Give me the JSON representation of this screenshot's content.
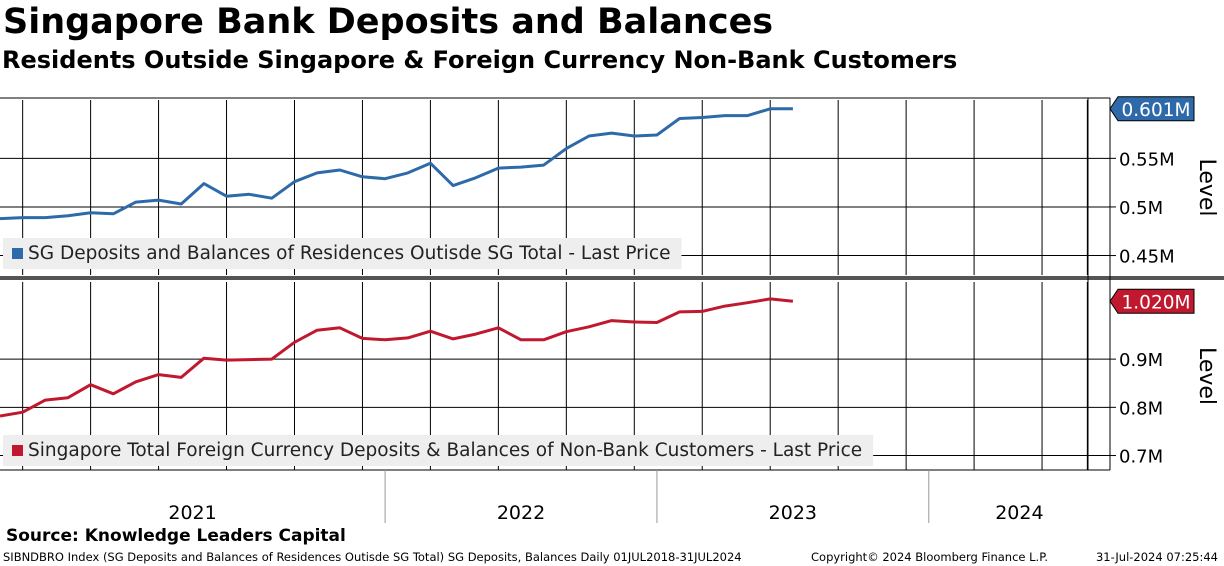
{
  "header": {
    "title": "Singapore Bank Deposits and Balances",
    "subtitle": "Residents Outside Singapore & Foreign Currency Non-Bank Customers"
  },
  "colors": {
    "blue": "#2e6aa9",
    "red": "#c0192f"
  },
  "x_axis": {
    "years": [
      "2021",
      "2022",
      "2023",
      "2024"
    ],
    "start": "2020-08-01",
    "end": "2024-09-01",
    "gridlines": [
      "2020-09-01",
      "2020-12-01",
      "2021-03-01",
      "2021-06-01",
      "2021-09-01",
      "2021-12-01",
      "2022-03-01",
      "2022-06-01",
      "2022-09-01",
      "2022-12-01",
      "2023-03-01",
      "2023-06-01",
      "2023-09-01",
      "2023-12-01",
      "2024-03-01",
      "2024-06-01",
      "2024-08-01"
    ],
    "year_separators": [
      "2022-01-01",
      "2023-01-01",
      "2024-01-01"
    ]
  },
  "chart_data": [
    {
      "type": "line",
      "series_name": "SG Deposits and Balances of Residences Outisde SG Total - Last Price",
      "axis_label": "Level",
      "last_value_label": "0.601M",
      "ylim": [
        0.43,
        0.61
      ],
      "ticks": [
        0.45,
        0.5,
        0.55
      ],
      "tick_labels": [
        "0.45M",
        "0.5M",
        "0.55M"
      ],
      "x": [
        "2020-08",
        "2020-09",
        "2020-10",
        "2020-11",
        "2020-12",
        "2021-01",
        "2021-02",
        "2021-03",
        "2021-04",
        "2021-05",
        "2021-06",
        "2021-07",
        "2021-08",
        "2021-09",
        "2021-10",
        "2021-11",
        "2021-12",
        "2022-01",
        "2022-02",
        "2022-03",
        "2022-04",
        "2022-05",
        "2022-06",
        "2022-07",
        "2022-08",
        "2022-09",
        "2022-10",
        "2022-11",
        "2022-12",
        "2023-01",
        "2023-02",
        "2023-03",
        "2023-04",
        "2023-05",
        "2023-06",
        "2023-07"
      ],
      "values": [
        0.488,
        0.489,
        0.489,
        0.491,
        0.494,
        0.493,
        0.505,
        0.507,
        0.503,
        0.524,
        0.511,
        0.513,
        0.509,
        0.526,
        0.535,
        0.538,
        0.531,
        0.529,
        0.535,
        0.545,
        0.522,
        0.53,
        0.54,
        0.541,
        0.543,
        0.56,
        0.573,
        0.576,
        0.573,
        0.574,
        0.591,
        0.592,
        0.594,
        0.594,
        0.601,
        0.601
      ]
    },
    {
      "type": "line",
      "series_name": "Singapore Total Foreign Currency Deposits & Balances of Non-Bank Customers - Last Price",
      "axis_label": "Level",
      "last_value_label": "1.020M",
      "ylim": [
        0.67,
        1.06
      ],
      "ticks": [
        0.7,
        0.8,
        0.9
      ],
      "tick_labels": [
        "0.7M",
        "0.8M",
        "0.9M"
      ],
      "x": [
        "2020-08",
        "2020-09",
        "2020-10",
        "2020-11",
        "2020-12",
        "2021-01",
        "2021-02",
        "2021-03",
        "2021-04",
        "2021-05",
        "2021-06",
        "2021-07",
        "2021-08",
        "2021-09",
        "2021-10",
        "2021-11",
        "2021-12",
        "2022-01",
        "2022-02",
        "2022-03",
        "2022-04",
        "2022-05",
        "2022-06",
        "2022-07",
        "2022-08",
        "2022-09",
        "2022-10",
        "2022-11",
        "2022-12",
        "2023-01",
        "2023-02",
        "2023-03",
        "2023-04",
        "2023-05",
        "2023-06",
        "2023-07"
      ],
      "values": [
        0.782,
        0.79,
        0.815,
        0.82,
        0.847,
        0.828,
        0.853,
        0.868,
        0.862,
        0.902,
        0.898,
        0.899,
        0.9,
        0.935,
        0.96,
        0.965,
        0.943,
        0.94,
        0.944,
        0.958,
        0.942,
        0.952,
        0.965,
        0.94,
        0.94,
        0.957,
        0.967,
        0.98,
        0.977,
        0.976,
        0.998,
        0.999,
        1.01,
        1.017,
        1.025,
        1.02
      ]
    }
  ],
  "source": "Source: Knowledge Leaders Capital",
  "footer": {
    "index_info": "SIBNDBRO Index (SG Deposits and Balances of Residences Outisde SG Total) SG Deposits, Balances  Daily 01JUL2018-31JUL2024",
    "copyright": "Copyright© 2024 Bloomberg Finance L.P.",
    "timestamp": "31-Jul-2024 07:25:44"
  }
}
